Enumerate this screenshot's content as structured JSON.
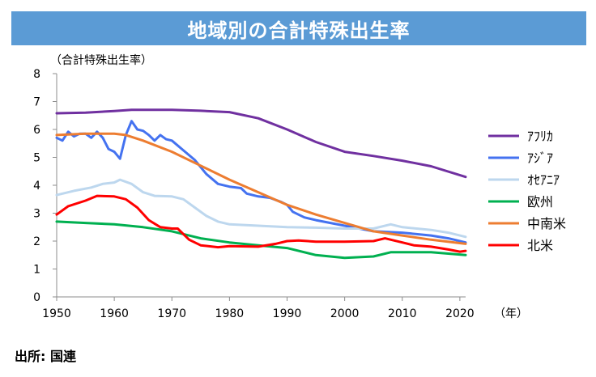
{
  "header": {
    "title": "地域別の合計特殊出生率"
  },
  "footer": {
    "source": "出所: 国連"
  },
  "chart_data": {
    "type": "line",
    "title": "地域別の合計特殊出生率",
    "ylabel": "（合計特殊出生率）",
    "xlabel": "（年）",
    "xlim": [
      1950,
      2021
    ],
    "ylim": [
      0,
      8
    ],
    "x_ticks": [
      1950,
      1960,
      1970,
      1980,
      1990,
      2000,
      2010,
      2020
    ],
    "y_ticks": [
      0,
      1,
      2,
      3,
      4,
      5,
      6,
      7,
      8
    ],
    "grid": false,
    "legend_position": "right",
    "series": [
      {
        "name": "ｱﾌﾘｶ",
        "color": "#7030a0",
        "points": [
          [
            1950,
            6.58
          ],
          [
            1955,
            6.6
          ],
          [
            1960,
            6.66
          ],
          [
            1963,
            6.7
          ],
          [
            1970,
            6.7
          ],
          [
            1975,
            6.67
          ],
          [
            1980,
            6.62
          ],
          [
            1985,
            6.4
          ],
          [
            1990,
            6.0
          ],
          [
            1995,
            5.55
          ],
          [
            2000,
            5.2
          ],
          [
            2005,
            5.05
          ],
          [
            2010,
            4.88
          ],
          [
            2015,
            4.68
          ],
          [
            2021,
            4.3
          ]
        ]
      },
      {
        "name": "ｱｼﾞｱ",
        "color": "#4472f0",
        "points": [
          [
            1950,
            5.7
          ],
          [
            1951,
            5.6
          ],
          [
            1952,
            5.92
          ],
          [
            1953,
            5.75
          ],
          [
            1954,
            5.85
          ],
          [
            1955,
            5.85
          ],
          [
            1956,
            5.7
          ],
          [
            1957,
            5.92
          ],
          [
            1958,
            5.7
          ],
          [
            1959,
            5.3
          ],
          [
            1960,
            5.2
          ],
          [
            1961,
            4.95
          ],
          [
            1962,
            5.8
          ],
          [
            1963,
            6.3
          ],
          [
            1964,
            6.0
          ],
          [
            1965,
            5.95
          ],
          [
            1966,
            5.8
          ],
          [
            1967,
            5.6
          ],
          [
            1968,
            5.8
          ],
          [
            1969,
            5.65
          ],
          [
            1970,
            5.6
          ],
          [
            1972,
            5.25
          ],
          [
            1974,
            4.9
          ],
          [
            1976,
            4.4
          ],
          [
            1978,
            4.05
          ],
          [
            1980,
            3.95
          ],
          [
            1982,
            3.9
          ],
          [
            1983,
            3.7
          ],
          [
            1985,
            3.6
          ],
          [
            1987,
            3.55
          ],
          [
            1989,
            3.4
          ],
          [
            1990,
            3.3
          ],
          [
            1991,
            3.05
          ],
          [
            1993,
            2.85
          ],
          [
            1995,
            2.75
          ],
          [
            2000,
            2.55
          ],
          [
            2005,
            2.35
          ],
          [
            2010,
            2.3
          ],
          [
            2015,
            2.2
          ],
          [
            2018,
            2.1
          ],
          [
            2021,
            1.95
          ]
        ]
      },
      {
        "name": "ｵｾｱﾆｱ",
        "color": "#bdd7ee",
        "points": [
          [
            1950,
            3.65
          ],
          [
            1953,
            3.8
          ],
          [
            1956,
            3.92
          ],
          [
            1958,
            4.05
          ],
          [
            1960,
            4.1
          ],
          [
            1961,
            4.2
          ],
          [
            1963,
            4.05
          ],
          [
            1965,
            3.75
          ],
          [
            1967,
            3.62
          ],
          [
            1970,
            3.6
          ],
          [
            1972,
            3.5
          ],
          [
            1974,
            3.2
          ],
          [
            1976,
            2.9
          ],
          [
            1978,
            2.7
          ],
          [
            1980,
            2.6
          ],
          [
            1985,
            2.55
          ],
          [
            1990,
            2.5
          ],
          [
            1995,
            2.48
          ],
          [
            2000,
            2.45
          ],
          [
            2005,
            2.45
          ],
          [
            2008,
            2.6
          ],
          [
            2010,
            2.5
          ],
          [
            2015,
            2.4
          ],
          [
            2018,
            2.3
          ],
          [
            2021,
            2.15
          ]
        ]
      },
      {
        "name": "欧州",
        "color": "#00b050",
        "points": [
          [
            1950,
            2.7
          ],
          [
            1955,
            2.65
          ],
          [
            1960,
            2.6
          ],
          [
            1965,
            2.5
          ],
          [
            1970,
            2.35
          ],
          [
            1975,
            2.1
          ],
          [
            1980,
            1.95
          ],
          [
            1985,
            1.85
          ],
          [
            1990,
            1.75
          ],
          [
            1995,
            1.5
          ],
          [
            2000,
            1.4
          ],
          [
            2005,
            1.45
          ],
          [
            2008,
            1.6
          ],
          [
            2010,
            1.6
          ],
          [
            2015,
            1.6
          ],
          [
            2018,
            1.55
          ],
          [
            2021,
            1.5
          ]
        ]
      },
      {
        "name": "中南米",
        "color": "#ed7d31",
        "points": [
          [
            1950,
            5.8
          ],
          [
            1955,
            5.85
          ],
          [
            1960,
            5.85
          ],
          [
            1962,
            5.8
          ],
          [
            1965,
            5.6
          ],
          [
            1970,
            5.2
          ],
          [
            1975,
            4.7
          ],
          [
            1980,
            4.2
          ],
          [
            1985,
            3.75
          ],
          [
            1990,
            3.3
          ],
          [
            1995,
            2.95
          ],
          [
            2000,
            2.65
          ],
          [
            2005,
            2.35
          ],
          [
            2010,
            2.2
          ],
          [
            2015,
            2.05
          ],
          [
            2021,
            1.9
          ]
        ]
      },
      {
        "name": "北米",
        "color": "#ff0000",
        "points": [
          [
            1950,
            2.95
          ],
          [
            1952,
            3.25
          ],
          [
            1955,
            3.45
          ],
          [
            1957,
            3.62
          ],
          [
            1960,
            3.6
          ],
          [
            1962,
            3.5
          ],
          [
            1964,
            3.2
          ],
          [
            1966,
            2.75
          ],
          [
            1968,
            2.5
          ],
          [
            1970,
            2.45
          ],
          [
            1971,
            2.45
          ],
          [
            1972,
            2.25
          ],
          [
            1973,
            2.05
          ],
          [
            1975,
            1.85
          ],
          [
            1978,
            1.78
          ],
          [
            1980,
            1.82
          ],
          [
            1985,
            1.8
          ],
          [
            1988,
            1.9
          ],
          [
            1990,
            2.0
          ],
          [
            1992,
            2.02
          ],
          [
            1995,
            1.98
          ],
          [
            2000,
            1.98
          ],
          [
            2005,
            2.0
          ],
          [
            2007,
            2.1
          ],
          [
            2010,
            1.95
          ],
          [
            2012,
            1.85
          ],
          [
            2015,
            1.8
          ],
          [
            2018,
            1.7
          ],
          [
            2020,
            1.62
          ],
          [
            2021,
            1.65
          ]
        ]
      }
    ]
  }
}
